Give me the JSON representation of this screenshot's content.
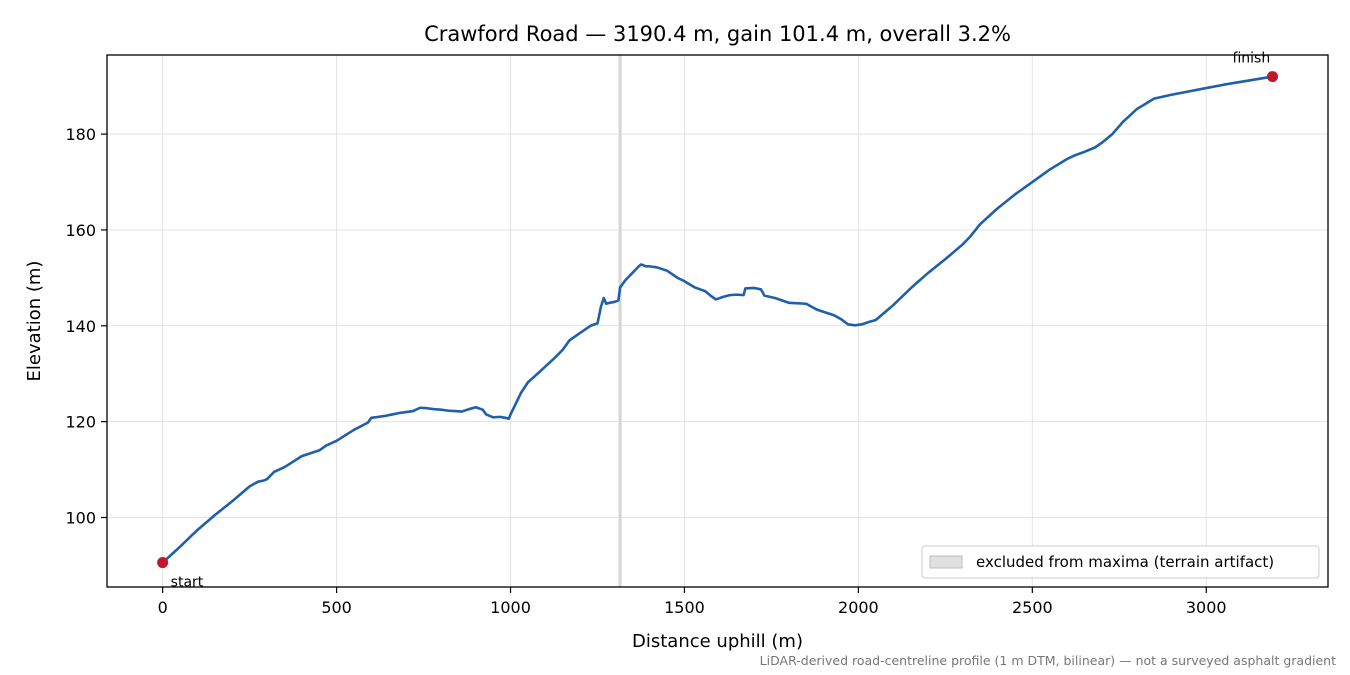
{
  "chart_data": {
    "type": "line",
    "title": "Crawford Road — 3190.4 m, gain 101.4 m, overall 3.2%",
    "xlabel": "Distance uphill (m)",
    "ylabel": "Elevation (m)",
    "xlim": [
      -160,
      3350
    ],
    "ylim": [
      85.5,
      196.5
    ],
    "x_ticks": [
      0,
      500,
      1000,
      1500,
      2000,
      2500,
      3000
    ],
    "y_ticks": [
      100,
      120,
      140,
      160,
      180
    ],
    "grid": true,
    "legend_position": "lower-right",
    "excluded_region": {
      "x": 1315,
      "label": "excluded from maxima (terrain artifact)"
    },
    "series": [
      {
        "color": "#1f5fad",
        "x": [
          0,
          50,
          100,
          150,
          200,
          250,
          275,
          290,
          300,
          320,
          350,
          400,
          450,
          470,
          500,
          550,
          590,
          600,
          620,
          640,
          660,
          680,
          700,
          720,
          740,
          760,
          780,
          800,
          820,
          840,
          860,
          880,
          900,
          920,
          930,
          950,
          970,
          985,
          995,
          1000,
          1010,
          1030,
          1050,
          1070,
          1100,
          1130,
          1150,
          1170,
          1200,
          1230,
          1250,
          1260,
          1268,
          1275,
          1285,
          1300,
          1310,
          1315,
          1330,
          1350,
          1370,
          1375,
          1390,
          1400,
          1420,
          1450,
          1480,
          1500,
          1530,
          1560,
          1575,
          1590,
          1610,
          1630,
          1650,
          1670,
          1675,
          1700,
          1720,
          1730,
          1760,
          1800,
          1850,
          1880,
          1900,
          1930,
          1950,
          1970,
          1990,
          2000,
          2010,
          2030,
          2050,
          2100,
          2150,
          2200,
          2250,
          2300,
          2320,
          2350,
          2400,
          2450,
          2500,
          2550,
          2600,
          2620,
          2650,
          2680,
          2700,
          2730,
          2760,
          2800,
          2850,
          2900,
          3000,
          3050,
          3100,
          3150,
          3190.4
        ],
        "y": [
          90.6,
          93.9,
          97.4,
          100.5,
          103.4,
          106.5,
          107.5,
          107.7,
          108.0,
          109.5,
          110.5,
          112.8,
          114.0,
          115.0,
          116.0,
          118.3,
          119.8,
          120.8,
          121.0,
          121.2,
          121.5,
          121.8,
          122.0,
          122.2,
          122.9,
          122.8,
          122.6,
          122.5,
          122.3,
          122.2,
          122.1,
          122.6,
          123.0,
          122.5,
          121.5,
          120.9,
          121.0,
          120.8,
          120.6,
          121.5,
          123.0,
          126.0,
          128.2,
          129.5,
          131.5,
          133.5,
          135.0,
          137.0,
          138.5,
          140.0,
          140.5,
          144.0,
          145.8,
          144.6,
          144.8,
          145.0,
          145.3,
          148.0,
          149.5,
          151.0,
          152.5,
          152.8,
          152.4,
          152.4,
          152.2,
          151.5,
          150.0,
          149.3,
          148.0,
          147.2,
          146.3,
          145.5,
          146.0,
          146.4,
          146.5,
          146.4,
          147.8,
          147.9,
          147.6,
          146.3,
          145.8,
          144.8,
          144.6,
          143.4,
          142.9,
          142.2,
          141.4,
          140.3,
          140.1,
          140.2,
          140.3,
          140.8,
          141.2,
          144.3,
          147.8,
          151.0,
          153.9,
          157.0,
          158.5,
          161.2,
          164.5,
          167.4,
          170.0,
          172.6,
          174.8,
          175.5,
          176.3,
          177.2,
          178.2,
          180.0,
          182.5,
          185.2,
          187.4,
          188.2,
          189.6,
          190.3,
          190.9,
          191.5,
          192.0
        ]
      }
    ],
    "markers": [
      {
        "label": "start",
        "x": 0,
        "y": 90.6,
        "color": "#c0182a"
      },
      {
        "label": "finish",
        "x": 3190.4,
        "y": 192.0,
        "color": "#c0182a"
      }
    ],
    "footnote": "LiDAR-derived road-centreline profile (1 m DTM, bilinear) — not a surveyed asphalt gradient"
  }
}
